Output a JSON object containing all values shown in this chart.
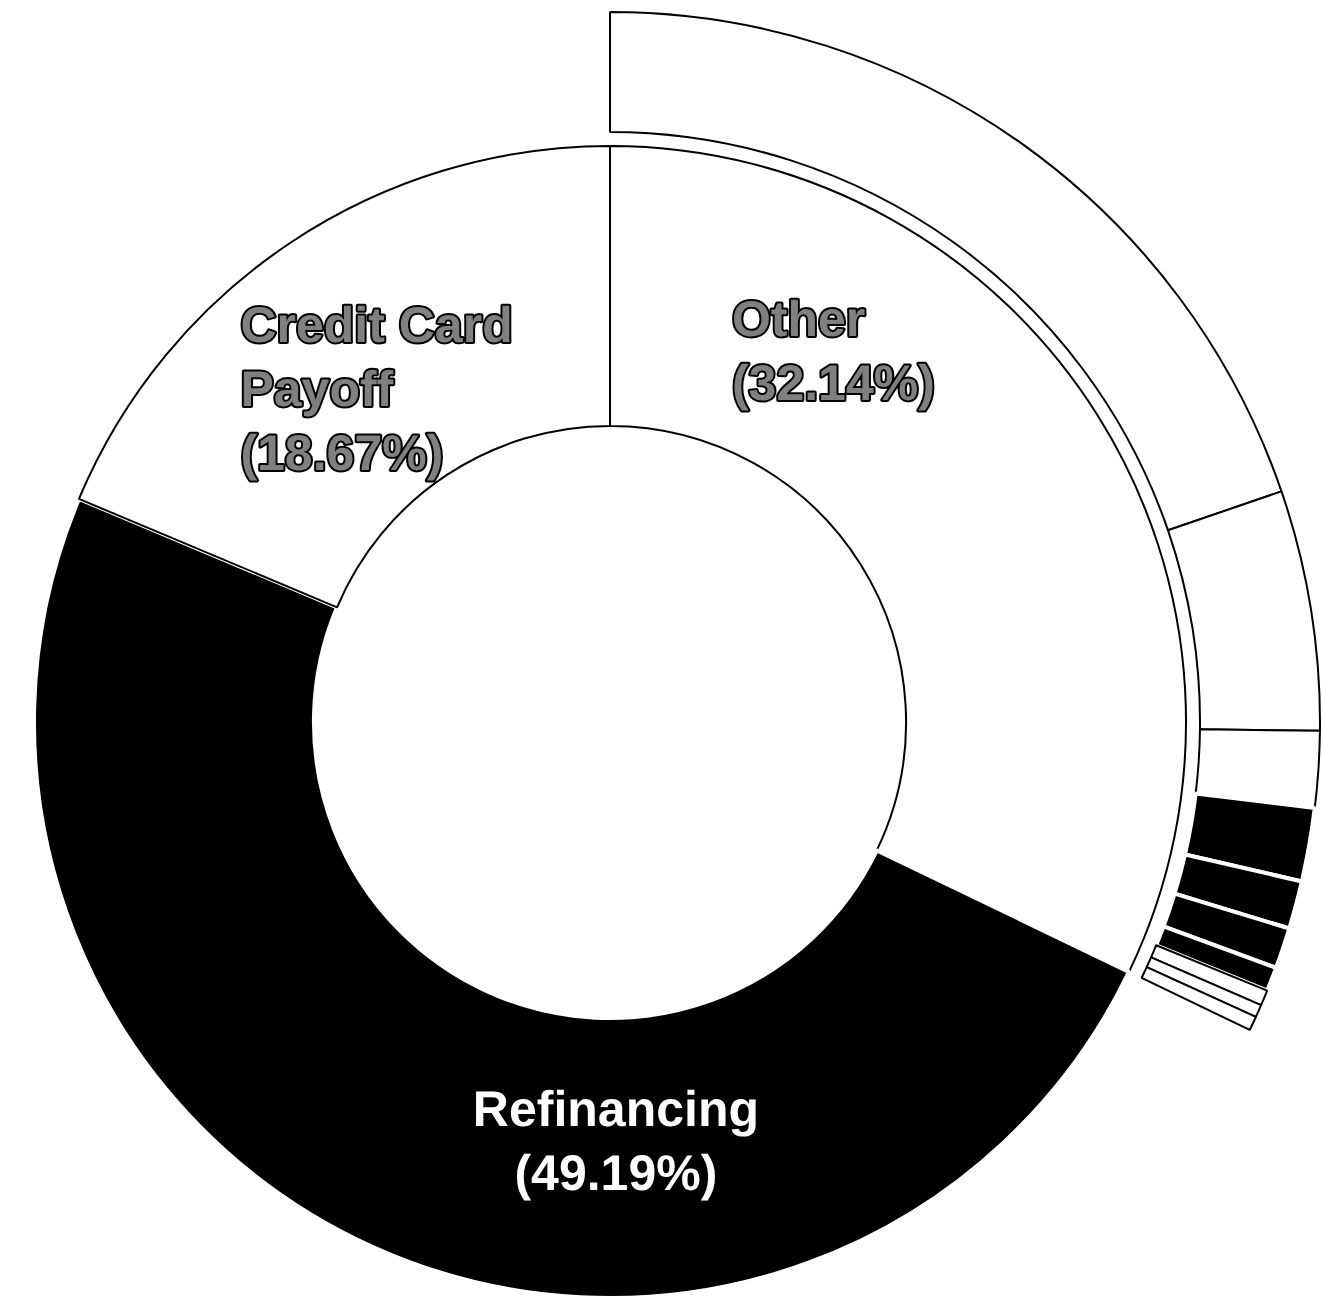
{
  "chart_data": {
    "type": "donut",
    "categories": [
      "Other",
      "Refinancing",
      "Credit Card Payoff",
      null,
      null,
      null,
      null,
      null,
      null,
      null,
      null,
      null,
      null
    ],
    "series": [
      {
        "values": [
          32.14,
          49.19,
          18.67,
          null,
          null,
          null,
          null,
          null,
          null,
          null,
          null,
          null,
          null
        ],
        "colors": [
          "#ffffff",
          "#000000",
          "#ffffff",
          null,
          null,
          null,
          null,
          null,
          null,
          null,
          null,
          null,
          null
        ],
        "value_labels": [
          "(32.14%)",
          "(49.19%)",
          "(18.67%)",
          null,
          null,
          null,
          null,
          null,
          null,
          null,
          null,
          null,
          null
        ]
      },
      {
        "values": [
          null,
          null,
          null,
          61.4,
          17.0,
          5.4,
          5.2,
          3.4,
          2.9,
          1.7,
          1.1,
          0.9,
          1.0
        ],
        "colors": [
          null,
          null,
          null,
          "#ffffff",
          "#ffffff",
          "#ffffff",
          "#000000",
          "#000000",
          "#000000",
          "#000000",
          "#ffffff",
          "#ffffff",
          "#ffffff"
        ]
      }
    ]
  }
}
